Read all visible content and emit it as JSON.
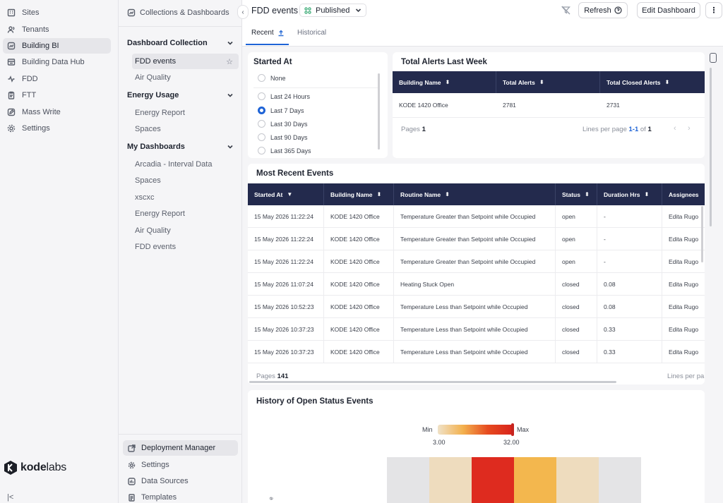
{
  "nav": {
    "items": [
      {
        "label": "Sites",
        "icon": "building-icon"
      },
      {
        "label": "Tenants",
        "icon": "users-icon"
      },
      {
        "label": "Building BI",
        "icon": "chart-icon",
        "active": true
      },
      {
        "label": "Building Data Hub",
        "icon": "database-icon"
      },
      {
        "label": "FDD",
        "icon": "fdd-icon"
      },
      {
        "label": "FTT",
        "icon": "clipboard-icon"
      },
      {
        "label": "Mass Write",
        "icon": "edit-icon"
      },
      {
        "label": "Settings",
        "icon": "gear-icon"
      }
    ],
    "logo": {
      "brand": "kode",
      "suffix": "labs"
    },
    "collapse_label": "|<"
  },
  "collections": {
    "header": "Collections & Dashboards",
    "groups": [
      {
        "label": "Dashboard Collection",
        "items": [
          "FDD events",
          "Air Quality"
        ]
      },
      {
        "label": "Energy Usage",
        "items": [
          "Energy Report",
          "Spaces"
        ]
      },
      {
        "label": "My Dashboards",
        "items": [
          "Arcadia - Interval Data",
          "Spaces",
          "xscxc",
          "Energy Report",
          "Air Quality",
          "FDD events"
        ]
      }
    ],
    "bottom": [
      {
        "label": "Deployment Manager",
        "icon": "external-link-icon"
      },
      {
        "label": "Settings",
        "icon": "gear-icon"
      },
      {
        "label": "Data Sources",
        "icon": "data-source-icon"
      },
      {
        "label": "Templates",
        "icon": "template-icon"
      }
    ]
  },
  "header": {
    "title": "FDD events",
    "status": "Published",
    "refresh_label": "Refresh",
    "edit_label": "Edit Dashboard",
    "more_label": "⋮",
    "tabs": [
      "Recent",
      "Historical"
    ]
  },
  "started_at": {
    "title": "Started At",
    "options": [
      "None",
      "Last 24 Hours",
      "Last 7 Days",
      "Last 30 Days",
      "Last 90 Days",
      "Last 365 Days"
    ],
    "selected": "Last 7 Days"
  },
  "alerts": {
    "title": "Total Alerts Last Week",
    "columns": [
      "Building Name",
      "Total Alerts",
      "Total Closed Alerts"
    ],
    "rows": [
      [
        "KODE 1420 Office",
        "2781",
        "2731"
      ]
    ],
    "pages_label": "Pages",
    "pages_value": "1",
    "lines_label": "Lines per page",
    "lines_range": "1-1",
    "lines_of": "of",
    "lines_total": "1"
  },
  "events": {
    "title": "Most Recent Events",
    "columns": [
      "Started At",
      "Building Name",
      "Routine Name",
      "Status",
      "Duration Hrs",
      "Assignees"
    ],
    "rows": [
      [
        "15 May 2026 11:22:24",
        "KODE 1420 Office",
        "Temperature Greater than Setpoint while Occupied",
        "open",
        "-",
        "Edita Rugo"
      ],
      [
        "15 May 2026 11:22:24",
        "KODE 1420 Office",
        "Temperature Greater than Setpoint while Occupied",
        "open",
        "-",
        "Edita Rugo"
      ],
      [
        "15 May 2026 11:22:24",
        "KODE 1420 Office",
        "Temperature Greater than Setpoint while Occupied",
        "open",
        "-",
        "Edita Rugo"
      ],
      [
        "15 May 2026 11:07:24",
        "KODE 1420 Office",
        "Heating Stuck Open",
        "closed",
        "0.08",
        "Edita Rugo"
      ],
      [
        "15 May 2026 10:52:23",
        "KODE 1420 Office",
        "Temperature Less than Setpoint while Occupied",
        "closed",
        "0.08",
        "Edita Rugo"
      ],
      [
        "15 May 2026 10:37:23",
        "KODE 1420 Office",
        "Temperature Less than Setpoint while Occupied",
        "closed",
        "0.33",
        "Edita Rugo"
      ],
      [
        "15 May 2026 10:37:23",
        "KODE 1420 Office",
        "Temperature Less than Setpoint while Occupied",
        "closed",
        "0.33",
        "Edita Rugo"
      ]
    ],
    "pages_label": "Pages",
    "pages_value": "141",
    "lines_label": "Lines per pa"
  },
  "history": {
    "title": "History of Open Status Events",
    "legend_min_label": "Min",
    "legend_max_label": "Max",
    "legend_min_value": "3.00",
    "legend_max_value": "32.00",
    "y_axis_fragment": "e"
  },
  "chart_data": {
    "type": "heatmap",
    "title": "History of Open Status Events",
    "color_scale": {
      "min": 3.0,
      "max": 32.0,
      "colors": [
        "#f0e2c8",
        "#f3b14e",
        "#e64a1f",
        "#d8231c"
      ]
    },
    "cells": [
      {
        "color": "#e4e4e6"
      },
      {
        "color": "#eedcbe"
      },
      {
        "color": "#de2b1f"
      },
      {
        "color": "#f3b74e"
      },
      {
        "color": "#eedcbe"
      },
      {
        "color": "#e4e4e6"
      }
    ]
  }
}
